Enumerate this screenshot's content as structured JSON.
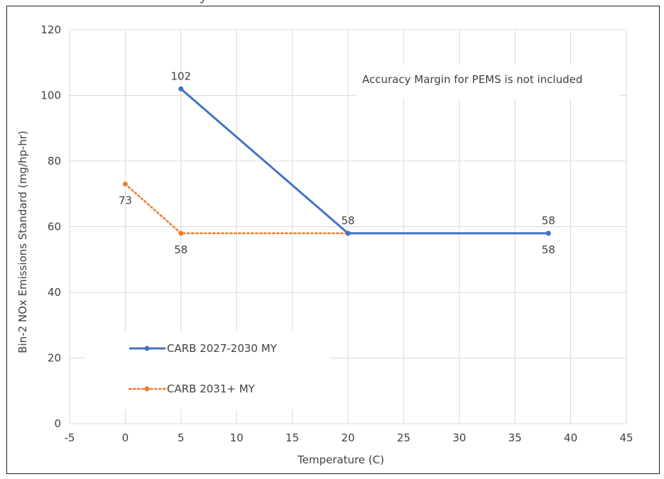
{
  "header_fragment": "y",
  "chart_data": {
    "type": "line",
    "title": "",
    "xlabel": "Temperature (C)",
    "ylabel": "Bin-2 NOx Emissions Standard (mg/hp-hr)",
    "xlim": [
      -5,
      45
    ],
    "ylim": [
      0,
      120
    ],
    "xticks": [
      -5,
      0,
      5,
      10,
      15,
      20,
      25,
      30,
      35,
      40,
      45
    ],
    "yticks": [
      0,
      20,
      40,
      60,
      80,
      100,
      120
    ],
    "grid": true,
    "legend_position": "bottom-left",
    "annotation": "Accuracy Margin for PEMS is not included",
    "series": [
      {
        "name": "CARB 2027-2030 MY",
        "color": "#4472C4",
        "style": "solid",
        "points": [
          [
            5,
            102
          ],
          [
            20,
            58
          ],
          [
            38,
            58
          ]
        ],
        "labels": [
          {
            "x": 5,
            "y": 102,
            "text": "102",
            "pos": "above"
          },
          {
            "x": 20,
            "y": 58,
            "text": "58",
            "pos": "above"
          },
          {
            "x": 38,
            "y": 58,
            "text": "58",
            "pos": "above"
          }
        ]
      },
      {
        "name": "CARB 2031+ MY",
        "color": "#ED7D31",
        "style": "dotted",
        "points": [
          [
            0,
            73
          ],
          [
            5,
            58
          ],
          [
            20,
            58
          ],
          [
            38,
            58
          ]
        ],
        "labels": [
          {
            "x": 0,
            "y": 73,
            "text": "73",
            "pos": "below"
          },
          {
            "x": 5,
            "y": 58,
            "text": "58",
            "pos": "below"
          },
          {
            "x": 38,
            "y": 58,
            "text": "58",
            "pos": "below"
          }
        ]
      }
    ]
  }
}
